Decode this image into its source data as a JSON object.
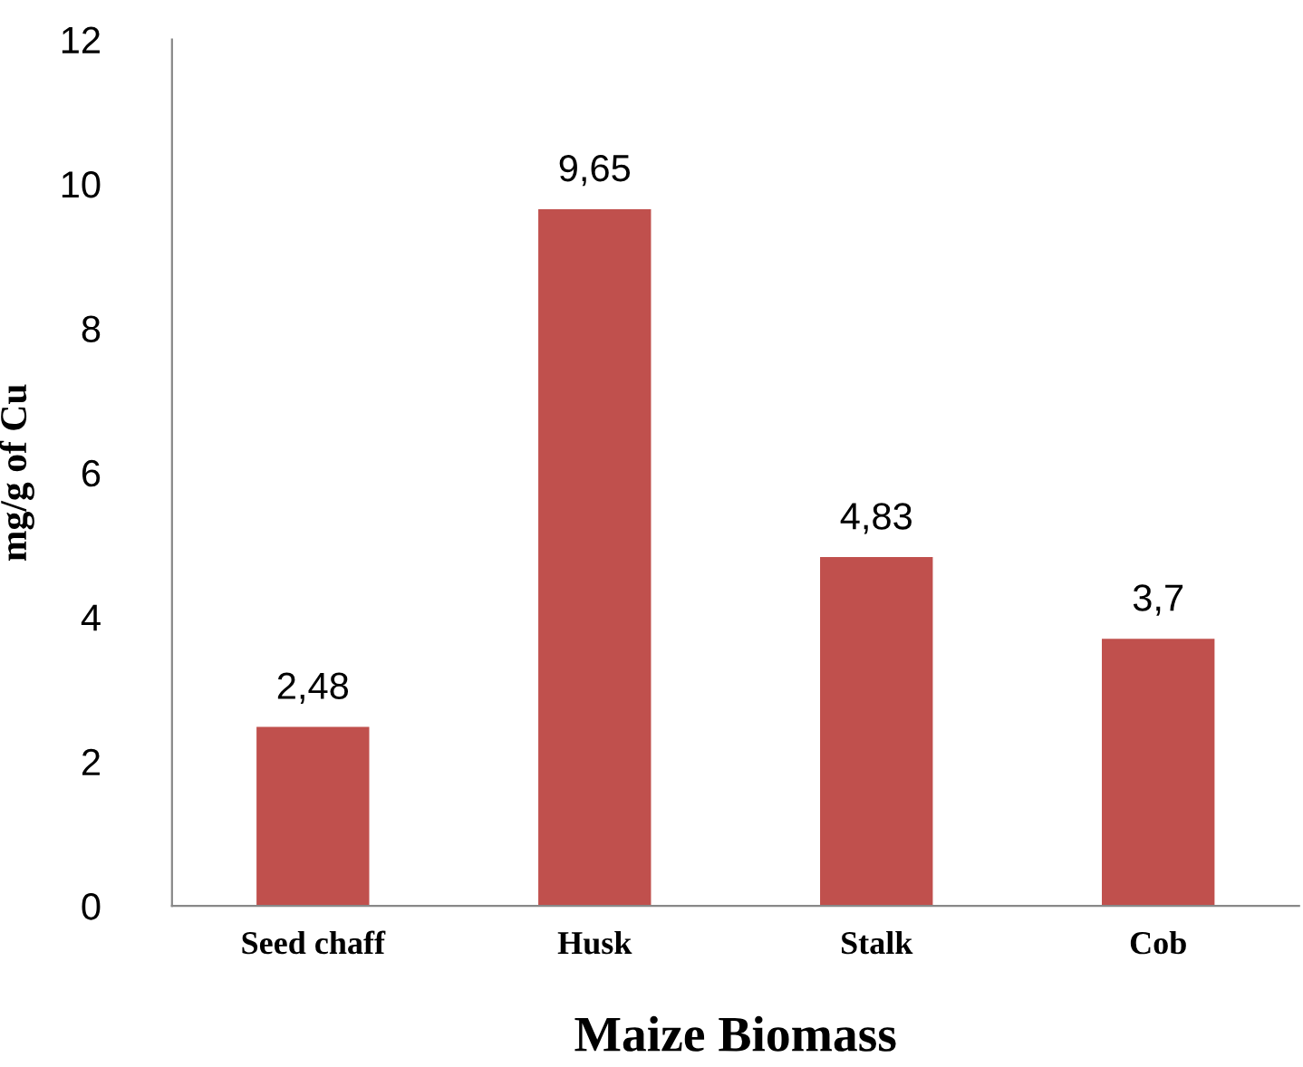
{
  "chart_data": {
    "type": "bar",
    "xlabel": "Maize Biomass",
    "ylabel": "mg/g of Cu",
    "categories": [
      "Seed chaff",
      "Husk",
      "Stalk",
      "Cob"
    ],
    "values": [
      2.48,
      9.65,
      4.83,
      3.7
    ],
    "value_labels": [
      "2,48",
      "9,65",
      "4,83",
      "3,7"
    ],
    "color": "#c0504d",
    "ylim": [
      0,
      12
    ],
    "yticks": [
      0,
      2,
      4,
      6,
      8,
      10,
      12
    ],
    "grid": false,
    "legend": false
  }
}
